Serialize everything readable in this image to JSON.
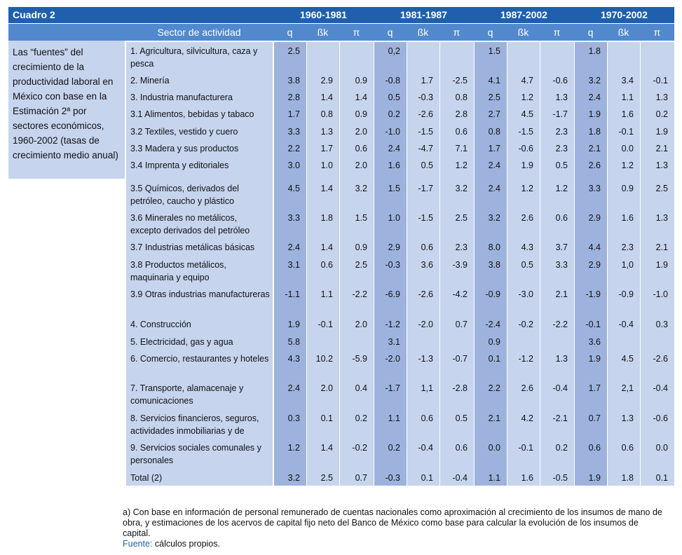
{
  "header": {
    "title": "Cuadro 2",
    "sector_label": "Sector de actividad",
    "periods": [
      "1960-1981",
      "1981-1987",
      "1987-2002",
      "1970-2002"
    ],
    "columns": [
      "q",
      "ßk",
      "π"
    ]
  },
  "caption": "Las “fuentes” del crecimiento de la productividad laboral en México con base en la Estimación 2ª por sectores económicos, 1960-2002 (tasas de crecimiento medio anual)",
  "table": {
    "rows": [
      {
        "label": "1. Agricultura, silvicultura, caza y pesca",
        "values": [
          "2.5",
          null,
          null,
          "0,2",
          null,
          null,
          "1.5",
          null,
          null,
          "1.8",
          null,
          null
        ]
      },
      {
        "label": "2. Minería",
        "values": [
          "3.8",
          "2.9",
          "0.9",
          "-0.8",
          "1.7",
          "-2.5",
          "4.1",
          "4.7",
          "-0.6",
          "3.2",
          "3.4",
          "-0.1"
        ]
      },
      {
        "label": "3. Industria manufacturera",
        "values": [
          "2.8",
          "1.4",
          "1.4",
          "0.5",
          "-0.3",
          "0.8",
          "2.5",
          "1.2",
          "1.3",
          "2.4",
          "1.1",
          "1.3"
        ]
      },
      {
        "label": "3.1 Alimentos, bebidas y tabaco",
        "values": [
          "1.7",
          "0.8",
          "0.9",
          "0.2",
          "-2.6",
          "2.8",
          "2.7",
          "4.5",
          "-1.7",
          "1.9",
          "1.6",
          "0.2"
        ]
      },
      {
        "label": "3.2 Textiles, vestido y cuero",
        "values": [
          "3.3",
          "1.3",
          "2.0",
          "-1.0",
          "-1.5",
          "0.6",
          "0.8",
          "-1.5",
          "2.3",
          "1.8",
          "-0.1",
          "1.9"
        ]
      },
      {
        "label": "3.3 Madera y sus productos",
        "values": [
          "2.2",
          "1.7",
          "0.6",
          "2.4",
          "-4.7",
          "7.1",
          "1.7",
          "-0.6",
          "2.3",
          "2.1",
          "0.0",
          "2.1"
        ]
      },
      {
        "label": "3.4 Imprenta y editoriales",
        "values": [
          "3.0",
          "1.0",
          "2.0",
          "1.6",
          "0.5",
          "1.2",
          "2.4",
          "1.9",
          "0.5",
          "2.6",
          "1.2",
          "1.3"
        ]
      },
      {
        "label": "3.5 Químicos, derivados del petróleo, caucho y plástico",
        "values": [
          "4.5",
          "1.4",
          "3.2",
          "1.5",
          "-1.7",
          "3.2",
          "2.4",
          "1.2",
          "1.2",
          "3.3",
          "0.9",
          "2.5"
        ]
      },
      {
        "label": "3.6 Minerales no metálicos, excepto derivados del petróleo",
        "values": [
          "3.3",
          "1.8",
          "1.5",
          "1.0",
          "-1.5",
          "2.5",
          "3.2",
          "2.6",
          "0.6",
          "2.9",
          "1.6",
          "1.3"
        ]
      },
      {
        "label": "3.7 Industrias metálicas básicas",
        "values": [
          "2.4",
          "1.4",
          "0.9",
          "2.9",
          "0.6",
          "2.3",
          "8.0",
          "4.3",
          "3.7",
          "4.4",
          "2.3",
          "2.1"
        ]
      },
      {
        "label": "3.8 Productos metálicos, maquinaria y equipo",
        "values": [
          "3.1",
          "0.6",
          "2.5",
          "-0.3",
          "3.6",
          "-3.9",
          "3.8",
          "0.5",
          "3.3",
          "2.9",
          "1,0",
          "1.9"
        ]
      },
      {
        "label": "3.9 Otras industrias manufactureras",
        "values": [
          "-1.1",
          "1.1",
          "-2.2",
          "-6.9",
          "-2.6",
          "-4.2",
          "-0.9",
          "-3.0",
          "2.1",
          "-1.9",
          "-0.9",
          "-1.0"
        ]
      },
      {
        "label": "4. Construcción",
        "values": [
          "1.9",
          "-0.1",
          "2.0",
          "-1.2",
          "-2.0",
          "0.7",
          "-2.4",
          "-0.2",
          "-2.2",
          "-0.1",
          "-0.4",
          "0.3"
        ]
      },
      {
        "label": "5. Electricidad, gas y agua",
        "values": [
          "5.8",
          null,
          null,
          "3.1",
          null,
          null,
          "0.9",
          null,
          null,
          "3.6",
          null,
          null
        ]
      },
      {
        "label": "6. Comercio, restaurantes y hoteles",
        "values": [
          "4.3",
          "10.2",
          "-5.9",
          "-2.0",
          "-1.3",
          "-0.7",
          "0.1",
          "-1.2",
          "1.3",
          "1.9",
          "4.5",
          "-2.6"
        ]
      },
      {
        "label": "7. Transporte, alamacenaje y comunicaciones",
        "values": [
          "2.4",
          "2.0",
          "0.4",
          "-1.7",
          "1,1",
          "-2.8",
          "2.2",
          "2.6",
          "-0.4",
          "1.7",
          "2,1",
          "-0.4"
        ]
      },
      {
        "label": "8. Servicios financieros, seguros, actividades inmobiliarias y de alquiler",
        "values": [
          "0.3",
          "0.1",
          "0.2",
          "1.1",
          "0.6",
          "0.5",
          "2.1",
          "4.2",
          "-2.1",
          "0.7",
          "1.3",
          "-0.6"
        ]
      },
      {
        "label": "9. Servicios sociales comunales y personales",
        "values": [
          "1.2",
          "1.4",
          "-0.2",
          "0.2",
          "-0.4",
          "0.6",
          "0.0",
          "-0.1",
          "0.2",
          "0.6",
          "0.6",
          "0.0"
        ]
      },
      {
        "label": "Total (2)",
        "values": [
          "3.2",
          "2.5",
          "0.7",
          "-0.3",
          "0.1",
          "-0.4",
          "1.1",
          "1.6",
          "-0.5",
          "1.9",
          "1.8",
          "0.1"
        ]
      }
    ]
  },
  "footnote": {
    "note": "a) Con base en información de personal remunerado de cuentas nacionales como aproximación al crecimiento de los insumos de mano de obra, y estimaciones de los acervos de capital fijo neto del Banco de México como base para calcular la evolución de los insumos de capital.",
    "source_label": "Fuente:",
    "source_text": "cálculos propios."
  }
}
